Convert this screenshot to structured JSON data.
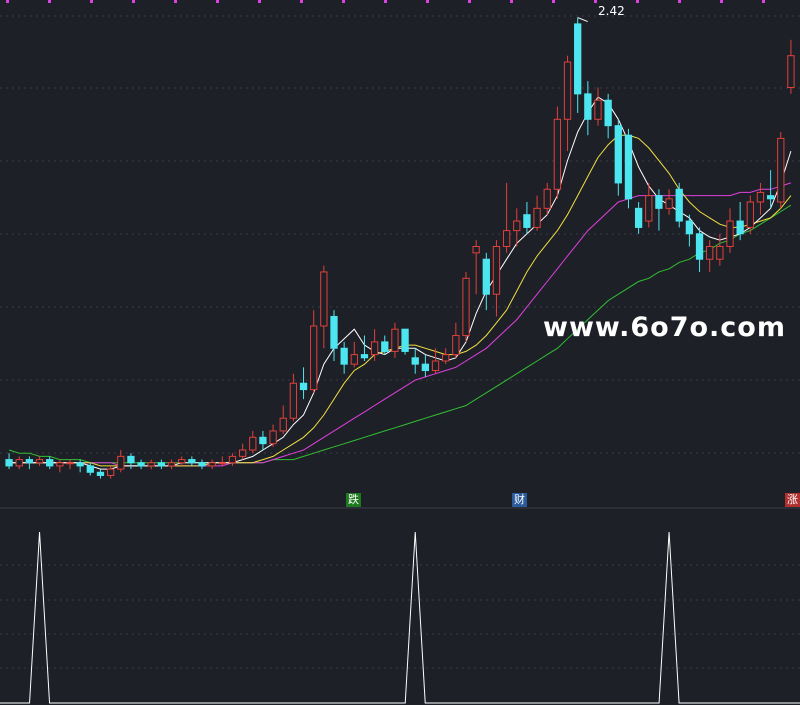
{
  "chart_data": [
    {
      "type": "candlestick",
      "peak_annotation": "2.42",
      "grid": true,
      "colors": {
        "background": "#1e2028",
        "up_candle": "#e0403a",
        "down_candle": "#4de6f0",
        "ma_short": "#ffffff",
        "ma_mid": "#f0e040",
        "ma_long": "#e040e0",
        "ma_longest": "#30c030",
        "grid": "#3a3c46"
      },
      "candles": [
        {
          "o": 1.03,
          "c": 1.01,
          "h": 1.05,
          "l": 1.0
        },
        {
          "o": 1.01,
          "c": 1.03,
          "h": 1.04,
          "l": 1.0
        },
        {
          "o": 1.03,
          "c": 1.02,
          "h": 1.04,
          "l": 1.0
        },
        {
          "o": 1.02,
          "c": 1.03,
          "h": 1.04,
          "l": 1.01
        },
        {
          "o": 1.03,
          "c": 1.01,
          "h": 1.04,
          "l": 1.0
        },
        {
          "o": 1.01,
          "c": 1.02,
          "h": 1.03,
          "l": 0.99
        },
        {
          "o": 1.02,
          "c": 1.02,
          "h": 1.03,
          "l": 1.0
        },
        {
          "o": 1.02,
          "c": 1.01,
          "h": 1.03,
          "l": 0.99
        },
        {
          "o": 1.01,
          "c": 0.99,
          "h": 1.02,
          "l": 0.98
        },
        {
          "o": 0.99,
          "c": 0.98,
          "h": 1.0,
          "l": 0.97
        },
        {
          "o": 0.98,
          "c": 1.0,
          "h": 1.01,
          "l": 0.97
        },
        {
          "o": 1.0,
          "c": 1.04,
          "h": 1.06,
          "l": 0.99
        },
        {
          "o": 1.04,
          "c": 1.02,
          "h": 1.05,
          "l": 1.0
        },
        {
          "o": 1.02,
          "c": 1.01,
          "h": 1.03,
          "l": 1.0
        },
        {
          "o": 1.01,
          "c": 1.02,
          "h": 1.03,
          "l": 1.0
        },
        {
          "o": 1.02,
          "c": 1.01,
          "h": 1.03,
          "l": 1.0
        },
        {
          "o": 1.01,
          "c": 1.02,
          "h": 1.03,
          "l": 1.0
        },
        {
          "o": 1.02,
          "c": 1.03,
          "h": 1.04,
          "l": 1.01
        },
        {
          "o": 1.03,
          "c": 1.02,
          "h": 1.04,
          "l": 1.01
        },
        {
          "o": 1.02,
          "c": 1.01,
          "h": 1.03,
          "l": 1.0
        },
        {
          "o": 1.01,
          "c": 1.02,
          "h": 1.03,
          "l": 1.0
        },
        {
          "o": 1.02,
          "c": 1.02,
          "h": 1.04,
          "l": 1.01
        },
        {
          "o": 1.02,
          "c": 1.04,
          "h": 1.05,
          "l": 1.01
        },
        {
          "o": 1.04,
          "c": 1.06,
          "h": 1.08,
          "l": 1.03
        },
        {
          "o": 1.06,
          "c": 1.1,
          "h": 1.12,
          "l": 1.05
        },
        {
          "o": 1.1,
          "c": 1.08,
          "h": 1.12,
          "l": 1.06
        },
        {
          "o": 1.08,
          "c": 1.12,
          "h": 1.14,
          "l": 1.07
        },
        {
          "o": 1.12,
          "c": 1.16,
          "h": 1.2,
          "l": 1.11
        },
        {
          "o": 1.16,
          "c": 1.27,
          "h": 1.3,
          "l": 1.15
        },
        {
          "o": 1.27,
          "c": 1.25,
          "h": 1.32,
          "l": 1.22
        },
        {
          "o": 1.25,
          "c": 1.45,
          "h": 1.5,
          "l": 1.24
        },
        {
          "o": 1.45,
          "c": 1.62,
          "h": 1.64,
          "l": 1.38
        },
        {
          "o": 1.48,
          "c": 1.38,
          "h": 1.5,
          "l": 1.34
        },
        {
          "o": 1.38,
          "c": 1.33,
          "h": 1.4,
          "l": 1.3
        },
        {
          "o": 1.33,
          "c": 1.36,
          "h": 1.4,
          "l": 1.32
        },
        {
          "o": 1.36,
          "c": 1.35,
          "h": 1.42,
          "l": 1.34
        },
        {
          "o": 1.36,
          "c": 1.4,
          "h": 1.44,
          "l": 1.34
        },
        {
          "o": 1.4,
          "c": 1.37,
          "h": 1.42,
          "l": 1.36
        },
        {
          "o": 1.37,
          "c": 1.44,
          "h": 1.46,
          "l": 1.35
        },
        {
          "o": 1.44,
          "c": 1.37,
          "h": 1.44,
          "l": 1.36
        },
        {
          "o": 1.35,
          "c": 1.33,
          "h": 1.38,
          "l": 1.3
        },
        {
          "o": 1.33,
          "c": 1.31,
          "h": 1.36,
          "l": 1.29
        },
        {
          "o": 1.31,
          "c": 1.34,
          "h": 1.38,
          "l": 1.3
        },
        {
          "o": 1.34,
          "c": 1.36,
          "h": 1.38,
          "l": 1.33
        },
        {
          "o": 1.36,
          "c": 1.42,
          "h": 1.46,
          "l": 1.35
        },
        {
          "o": 1.42,
          "c": 1.6,
          "h": 1.62,
          "l": 1.4
        },
        {
          "o": 1.68,
          "c": 1.7,
          "h": 1.72,
          "l": 1.55
        },
        {
          "o": 1.66,
          "c": 1.55,
          "h": 1.68,
          "l": 1.5
        },
        {
          "o": 1.55,
          "c": 1.7,
          "h": 1.72,
          "l": 1.48
        },
        {
          "o": 1.7,
          "c": 1.75,
          "h": 1.9,
          "l": 1.68
        },
        {
          "o": 1.75,
          "c": 1.78,
          "h": 1.82,
          "l": 1.7
        },
        {
          "o": 1.8,
          "c": 1.76,
          "h": 1.84,
          "l": 1.74
        },
        {
          "o": 1.76,
          "c": 1.82,
          "h": 1.86,
          "l": 1.75
        },
        {
          "o": 1.82,
          "c": 1.88,
          "h": 1.9,
          "l": 1.8
        },
        {
          "o": 1.88,
          "c": 2.1,
          "h": 2.14,
          "l": 1.85
        },
        {
          "o": 2.1,
          "c": 2.28,
          "h": 2.3,
          "l": 2.0
        },
        {
          "o": 2.4,
          "c": 2.18,
          "h": 2.42,
          "l": 2.12
        },
        {
          "o": 2.18,
          "c": 2.1,
          "h": 2.22,
          "l": 2.05
        },
        {
          "o": 2.1,
          "c": 2.16,
          "h": 2.2,
          "l": 2.08
        },
        {
          "o": 2.16,
          "c": 2.08,
          "h": 2.18,
          "l": 2.04
        },
        {
          "o": 2.08,
          "c": 1.9,
          "h": 2.1,
          "l": 1.86
        },
        {
          "o": 2.05,
          "c": 1.85,
          "h": 2.07,
          "l": 1.82
        },
        {
          "o": 1.82,
          "c": 1.76,
          "h": 1.84,
          "l": 1.74
        },
        {
          "o": 1.78,
          "c": 1.86,
          "h": 1.9,
          "l": 1.76
        },
        {
          "o": 1.86,
          "c": 1.82,
          "h": 1.88,
          "l": 1.75
        },
        {
          "o": 1.82,
          "c": 1.85,
          "h": 1.88,
          "l": 1.8
        },
        {
          "o": 1.88,
          "c": 1.78,
          "h": 1.9,
          "l": 1.76
        },
        {
          "o": 1.78,
          "c": 1.74,
          "h": 1.8,
          "l": 1.7
        },
        {
          "o": 1.74,
          "c": 1.66,
          "h": 1.76,
          "l": 1.62
        },
        {
          "o": 1.66,
          "c": 1.7,
          "h": 1.72,
          "l": 1.62
        },
        {
          "o": 1.66,
          "c": 1.7,
          "h": 1.74,
          "l": 1.64
        },
        {
          "o": 1.7,
          "c": 1.78,
          "h": 1.82,
          "l": 1.68
        },
        {
          "o": 1.78,
          "c": 1.74,
          "h": 1.84,
          "l": 1.72
        },
        {
          "o": 1.76,
          "c": 1.84,
          "h": 1.86,
          "l": 1.74
        },
        {
          "o": 1.84,
          "c": 1.87,
          "h": 1.9,
          "l": 1.8
        },
        {
          "o": 1.86,
          "c": 1.85,
          "h": 1.94,
          "l": 1.82
        },
        {
          "o": 1.84,
          "c": 2.04,
          "h": 2.06,
          "l": 1.82
        },
        {
          "o": 2.2,
          "c": 2.3,
          "h": 2.35,
          "l": 2.18
        }
      ],
      "ma_short": [
        1.02,
        1.02,
        1.02,
        1.02,
        1.02,
        1.02,
        1.02,
        1.02,
        1.01,
        1.0,
        1.0,
        1.01,
        1.01,
        1.01,
        1.01,
        1.01,
        1.01,
        1.02,
        1.02,
        1.02,
        1.02,
        1.02,
        1.02,
        1.03,
        1.04,
        1.06,
        1.08,
        1.1,
        1.14,
        1.17,
        1.24,
        1.33,
        1.38,
        1.41,
        1.44,
        1.39,
        1.37,
        1.36,
        1.38,
        1.38,
        1.38,
        1.36,
        1.35,
        1.34,
        1.35,
        1.4,
        1.49,
        1.56,
        1.61,
        1.66,
        1.71,
        1.74,
        1.77,
        1.8,
        1.86,
        1.97,
        2.06,
        2.12,
        2.17,
        2.15,
        2.1,
        2.03,
        1.95,
        1.89,
        1.85,
        1.83,
        1.81,
        1.79,
        1.75,
        1.73,
        1.72,
        1.73,
        1.74,
        1.76,
        1.79,
        1.82,
        1.9,
        2.0
      ],
      "ma_mid": [
        1.02,
        1.02,
        1.02,
        1.02,
        1.02,
        1.02,
        1.02,
        1.02,
        1.02,
        1.01,
        1.01,
        1.01,
        1.01,
        1.01,
        1.01,
        1.01,
        1.01,
        1.01,
        1.01,
        1.01,
        1.02,
        1.02,
        1.02,
        1.02,
        1.02,
        1.03,
        1.04,
        1.06,
        1.08,
        1.1,
        1.13,
        1.17,
        1.22,
        1.27,
        1.31,
        1.33,
        1.36,
        1.37,
        1.38,
        1.39,
        1.39,
        1.38,
        1.37,
        1.36,
        1.36,
        1.37,
        1.39,
        1.42,
        1.46,
        1.5,
        1.56,
        1.62,
        1.67,
        1.71,
        1.75,
        1.8,
        1.86,
        1.92,
        1.98,
        2.02,
        2.05,
        2.05,
        2.04,
        2.01,
        1.97,
        1.93,
        1.88,
        1.84,
        1.81,
        1.79,
        1.77,
        1.76,
        1.76,
        1.77,
        1.78,
        1.79,
        1.82,
        1.86
      ],
      "ma_long": [
        1.02,
        1.02,
        1.02,
        1.02,
        1.02,
        1.02,
        1.02,
        1.02,
        1.02,
        1.02,
        1.02,
        1.01,
        1.01,
        1.01,
        1.01,
        1.01,
        1.01,
        1.01,
        1.01,
        1.01,
        1.01,
        1.01,
        1.02,
        1.02,
        1.02,
        1.02,
        1.03,
        1.04,
        1.05,
        1.06,
        1.08,
        1.1,
        1.12,
        1.14,
        1.16,
        1.18,
        1.2,
        1.22,
        1.24,
        1.26,
        1.28,
        1.29,
        1.3,
        1.31,
        1.32,
        1.34,
        1.36,
        1.38,
        1.41,
        1.44,
        1.47,
        1.51,
        1.55,
        1.59,
        1.63,
        1.67,
        1.71,
        1.75,
        1.78,
        1.81,
        1.84,
        1.85,
        1.86,
        1.86,
        1.86,
        1.86,
        1.86,
        1.86,
        1.86,
        1.86,
        1.86,
        1.86,
        1.87,
        1.87,
        1.88,
        1.88,
        1.89,
        1.9
      ],
      "ma_longest": [
        1.06,
        1.05,
        1.05,
        1.04,
        1.04,
        1.03,
        1.03,
        1.03,
        1.02,
        1.02,
        1.02,
        1.02,
        1.02,
        1.02,
        1.02,
        1.02,
        1.02,
        1.02,
        1.02,
        1.02,
        1.02,
        1.02,
        1.02,
        1.02,
        1.02,
        1.02,
        1.03,
        1.03,
        1.03,
        1.04,
        1.05,
        1.06,
        1.07,
        1.08,
        1.09,
        1.1,
        1.11,
        1.12,
        1.13,
        1.14,
        1.15,
        1.16,
        1.17,
        1.18,
        1.19,
        1.2,
        1.22,
        1.24,
        1.26,
        1.28,
        1.3,
        1.32,
        1.34,
        1.36,
        1.38,
        1.41,
        1.44,
        1.47,
        1.5,
        1.53,
        1.55,
        1.57,
        1.59,
        1.6,
        1.62,
        1.63,
        1.65,
        1.66,
        1.68,
        1.69,
        1.71,
        1.72,
        1.74,
        1.75,
        1.77,
        1.79,
        1.81,
        1.83
      ],
      "ylim": [
        0.95,
        2.45
      ]
    },
    {
      "type": "line",
      "indicator": "signal",
      "peaks_at_index": [
        3,
        40,
        65
      ],
      "ylim": [
        0,
        1
      ],
      "color": "#ffffff"
    }
  ],
  "signal_tags": [
    {
      "label": "跌",
      "index": 35
    },
    {
      "label": "财",
      "index": 52
    },
    {
      "label": "涨",
      "index": 79
    }
  ],
  "watermark": "www.6o7o.com"
}
